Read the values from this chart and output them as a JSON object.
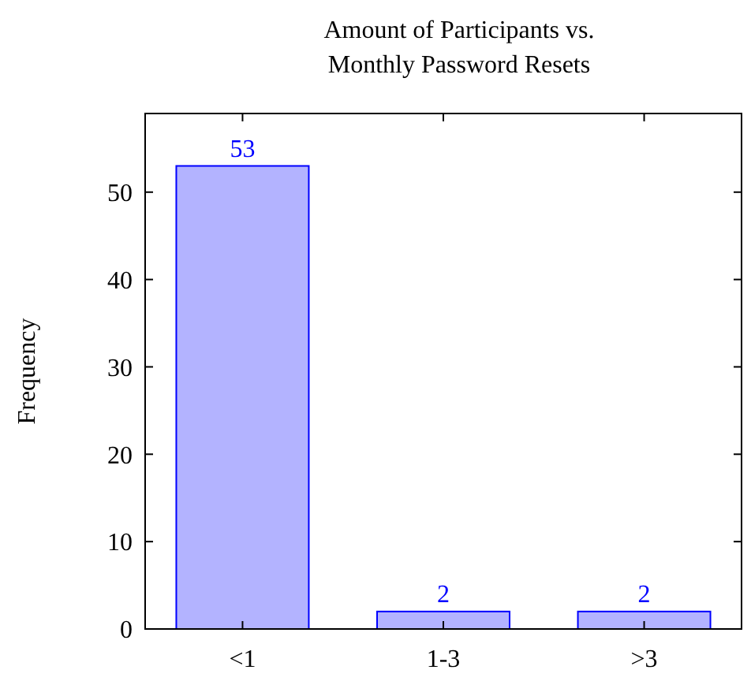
{
  "chart_data": {
    "type": "bar",
    "title": "Amount of Participants vs. Monthly Password Resets",
    "ylabel": "Frequency",
    "categories": [
      "<1",
      "1-3",
      ">3"
    ],
    "values": [
      53,
      2,
      2
    ],
    "color": "#b3b3ff",
    "ylim": [
      0,
      59
    ],
    "yticks": [
      0,
      10,
      20,
      30,
      40,
      50
    ],
    "grid": false,
    "data_labels": true
  }
}
